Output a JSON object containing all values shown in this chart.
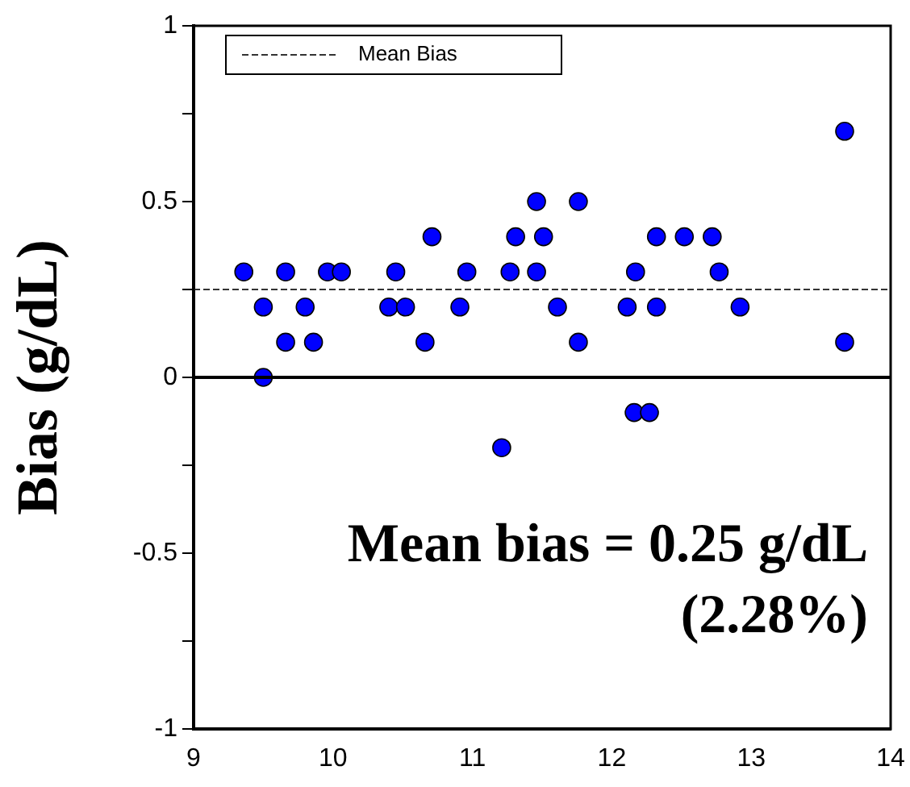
{
  "chart_data": {
    "type": "scatter",
    "ylabel": "Bias (g/dL)",
    "x": [
      9.36,
      9.5,
      9.5,
      9.66,
      9.66,
      9.8,
      9.86,
      9.96,
      10.06,
      10.4,
      10.45,
      10.52,
      10.66,
      10.71,
      10.91,
      10.96,
      11.21,
      11.27,
      11.31,
      11.46,
      11.46,
      11.51,
      11.61,
      11.76,
      11.76,
      12.11,
      12.16,
      12.17,
      12.27,
      12.32,
      12.32,
      12.52,
      12.72,
      12.77,
      12.92,
      13.67,
      13.67
    ],
    "series": [
      {
        "color": "#0000ff",
        "values": [
          0.3,
          0.2,
          0,
          0.3,
          0.1,
          0.2,
          0.1,
          0.3,
          0.3,
          0.2,
          0.3,
          0.2,
          0.1,
          0.4,
          0.2,
          0.3,
          -0.2,
          0.3,
          0.4,
          0.5,
          0.3,
          0.4,
          0.2,
          0.5,
          0.1,
          0.2,
          -0.1,
          0.3,
          -0.1,
          0.4,
          0.2,
          0.4,
          0.4,
          0.3,
          0.2,
          0.7,
          0.1
        ]
      }
    ],
    "xlim": [
      9,
      14
    ],
    "xticks": [
      9,
      10,
      11,
      12,
      13,
      14
    ],
    "ylim": [
      -1,
      1
    ],
    "yticks": [
      -1,
      {
        "value": -0.75,
        "label": null
      },
      -0.5,
      {
        "value": -0.25,
        "label": null
      },
      0,
      {
        "value": 0.25,
        "label": null
      },
      0.5,
      {
        "value": 0.75,
        "label": null
      },
      1
    ],
    "ref_lines": [
      {
        "axis": "y",
        "value": 0.25,
        "label": "Mean Bias",
        "line_style": "dashed",
        "color": "#333333"
      },
      {
        "axis": "y",
        "value": 0,
        "line_style": "solid",
        "color": "#000000"
      }
    ],
    "annotations": [
      "Mean bias = 0.25 g/dL\n(2.28%)"
    ],
    "marker": "circle",
    "grid": false,
    "legend": "top left"
  }
}
